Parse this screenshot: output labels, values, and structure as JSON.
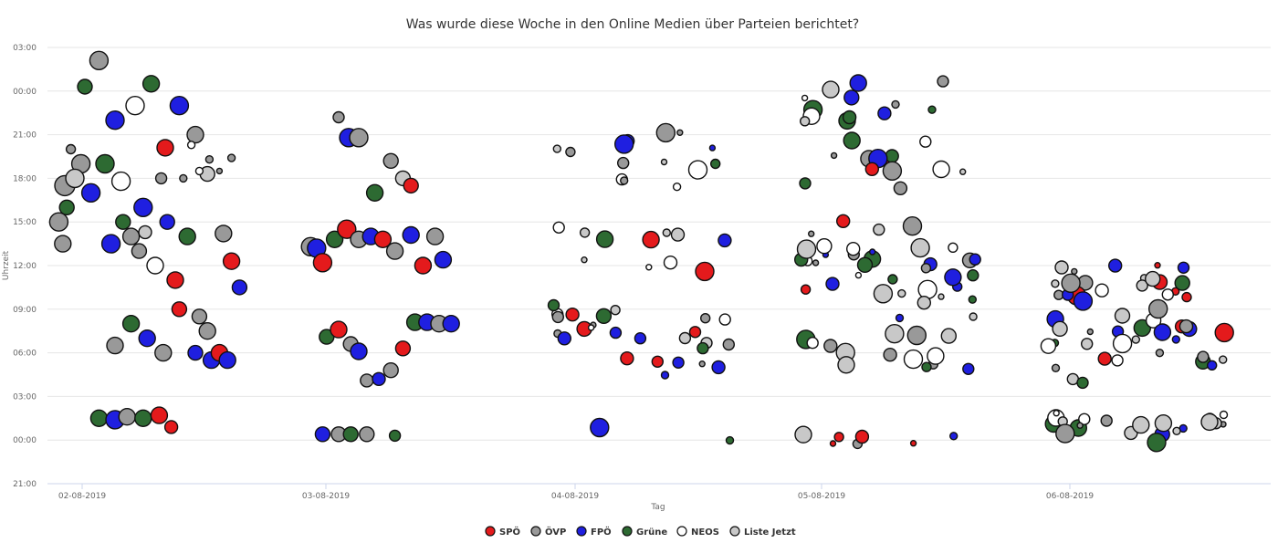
{
  "chart_data": {
    "type": "scatter",
    "title": "Was wurde diese Woche in den Online Medien über Parteien berichtet?",
    "xlabel": "Tag",
    "ylabel": "Uhrzeit",
    "x_categories": [
      "02-08-2019",
      "03-08-2019",
      "04-08-2019",
      "05-08-2019",
      "06-08-2019"
    ],
    "y_ticks": [
      "03:00",
      "00:00",
      "21:00",
      "18:00",
      "15:00",
      "12:00",
      "09:00",
      "06:00",
      "03:00",
      "00:00",
      "21:00"
    ],
    "ylim_hours": [
      -3,
      27
    ],
    "grid": true,
    "legend_position": "bottom-center",
    "series": [
      {
        "name": "SPÖ",
        "color": "#e41a1c"
      },
      {
        "name": "ÖVP",
        "color": "#999999"
      },
      {
        "name": "FPÖ",
        "color": "#1f1fe0"
      },
      {
        "name": "Grüne",
        "color": "#2d6a32"
      },
      {
        "name": "NEOS",
        "color": "#ffffff"
      },
      {
        "name": "Liste Jetzt",
        "color": "#c8c8c8"
      }
    ],
    "points": [
      [
        0,
        0.38,
        14,
        9,
        1
      ],
      [
        0,
        0.44,
        16,
        10,
        2
      ],
      [
        0,
        0.22,
        26.1,
        10,
        1
      ],
      [
        0,
        0.15,
        24.3,
        8,
        3
      ],
      [
        0,
        0.08,
        20,
        5,
        1
      ],
      [
        0,
        0.13,
        19,
        10,
        1
      ],
      [
        0,
        0.18,
        17,
        10,
        2
      ],
      [
        0,
        0.25,
        19,
        10,
        3
      ],
      [
        0,
        0.3,
        22,
        10,
        2
      ],
      [
        0,
        0.4,
        23,
        10,
        4
      ],
      [
        0,
        0.48,
        24.5,
        9,
        3
      ],
      [
        0,
        0.55,
        20.1,
        9,
        0
      ],
      [
        0,
        0.62,
        23,
        10,
        2
      ],
      [
        0,
        0.7,
        21,
        9,
        1
      ],
      [
        0,
        0.76,
        18.3,
        8,
        5
      ],
      [
        0,
        0.34,
        15,
        8,
        3
      ],
      [
        0,
        0.42,
        13,
        8,
        1
      ],
      [
        0,
        0.5,
        12,
        9,
        4
      ],
      [
        0,
        0.56,
        15,
        8,
        2
      ],
      [
        0,
        0.6,
        11,
        9,
        0
      ],
      [
        0,
        0.66,
        14,
        9,
        3
      ],
      [
        0,
        0.72,
        8.5,
        8,
        1
      ],
      [
        0,
        0.78,
        5.5,
        9,
        2
      ],
      [
        0,
        0.84,
        14.2,
        9,
        1
      ],
      [
        0,
        0.88,
        12.3,
        9,
        0
      ],
      [
        0,
        0.92,
        10.5,
        8,
        2
      ],
      [
        0,
        0.3,
        6.5,
        9,
        1
      ],
      [
        0,
        0.38,
        8,
        9,
        3
      ],
      [
        0,
        0.46,
        7,
        9,
        2
      ],
      [
        0,
        0.54,
        6,
        9,
        1
      ],
      [
        0,
        0.62,
        9,
        8,
        0
      ],
      [
        0,
        0.7,
        6,
        8,
        2
      ],
      [
        0,
        0.76,
        7.5,
        9,
        1
      ],
      [
        0,
        0.82,
        6,
        9,
        0
      ],
      [
        0,
        0.86,
        5.5,
        9,
        2
      ],
      [
        0,
        0.22,
        1.5,
        9,
        3
      ],
      [
        0,
        0.3,
        1.4,
        10,
        2
      ],
      [
        0,
        0.36,
        1.6,
        9,
        1
      ],
      [
        0,
        0.44,
        1.5,
        9,
        3
      ],
      [
        0,
        0.52,
        1.7,
        9,
        0
      ],
      [
        0,
        0.58,
        0.9,
        7,
        0
      ],
      [
        0,
        0.05,
        17.5,
        11,
        1
      ],
      [
        0,
        0.1,
        18,
        10,
        5
      ],
      [
        0,
        0.02,
        15,
        10,
        1
      ],
      [
        0,
        0.04,
        13.5,
        9,
        1
      ],
      [
        0,
        0.06,
        16,
        8,
        3
      ],
      [
        0,
        0.28,
        13.5,
        10,
        2
      ],
      [
        0,
        0.33,
        17.8,
        10,
        4
      ],
      [
        0,
        0.45,
        14.3,
        7,
        5
      ],
      [
        0,
        0.53,
        18,
        6,
        1
      ],
      [
        0,
        0.64,
        18,
        4,
        1
      ],
      [
        0,
        0.68,
        20.3,
        4,
        4
      ],
      [
        0,
        0.72,
        18.5,
        4,
        4
      ],
      [
        0,
        0.77,
        19.3,
        4,
        1
      ],
      [
        0,
        0.82,
        18.5,
        3,
        1
      ],
      [
        0,
        0.88,
        19.4,
        4,
        1
      ],
      [
        1,
        0.06,
        13.3,
        10,
        1
      ],
      [
        1,
        0.09,
        13.2,
        10,
        2
      ],
      [
        1,
        0.12,
        12.2,
        10,
        0
      ],
      [
        1,
        0.18,
        13.8,
        9,
        3
      ],
      [
        1,
        0.24,
        14.5,
        10,
        0
      ],
      [
        1,
        0.3,
        13.8,
        9,
        1
      ],
      [
        1,
        0.36,
        14,
        9,
        2
      ],
      [
        1,
        0.42,
        13.8,
        9,
        0
      ],
      [
        1,
        0.48,
        13,
        9,
        1
      ],
      [
        1,
        0.56,
        14.1,
        9,
        2
      ],
      [
        1,
        0.62,
        12,
        9,
        0
      ],
      [
        1,
        0.68,
        14,
        9,
        1
      ],
      [
        1,
        0.72,
        12.4,
        9,
        2
      ],
      [
        1,
        0.2,
        22.2,
        6,
        1
      ],
      [
        1,
        0.25,
        20.8,
        10,
        2
      ],
      [
        1,
        0.3,
        20.8,
        10,
        1
      ],
      [
        1,
        0.38,
        17,
        9,
        3
      ],
      [
        1,
        0.46,
        19.2,
        8,
        1
      ],
      [
        1,
        0.52,
        18,
        8,
        5
      ],
      [
        1,
        0.56,
        17.5,
        8,
        0
      ],
      [
        1,
        0.14,
        7.1,
        8,
        3
      ],
      [
        1,
        0.2,
        7.6,
        9,
        0
      ],
      [
        1,
        0.26,
        6.6,
        8,
        1
      ],
      [
        1,
        0.3,
        6.1,
        9,
        2
      ],
      [
        1,
        0.34,
        4.1,
        7,
        1
      ],
      [
        1,
        0.4,
        4.2,
        7,
        2
      ],
      [
        1,
        0.46,
        4.8,
        8,
        1
      ],
      [
        1,
        0.52,
        6.3,
        8,
        0
      ],
      [
        1,
        0.58,
        8.1,
        9,
        3
      ],
      [
        1,
        0.64,
        8.1,
        9,
        2
      ],
      [
        1,
        0.7,
        8,
        9,
        1
      ],
      [
        1,
        0.76,
        8,
        9,
        2
      ],
      [
        1,
        0.12,
        0.4,
        8,
        2
      ],
      [
        1,
        0.2,
        0.4,
        8,
        1
      ],
      [
        1,
        0.26,
        0.4,
        8,
        3
      ],
      [
        1,
        0.34,
        0.4,
        8,
        1
      ],
      [
        1,
        0.48,
        0.3,
        6,
        3
      ]
    ]
  },
  "legend": {
    "items": [
      {
        "label": "SPÖ",
        "color": "#e41a1c"
      },
      {
        "label": "ÖVP",
        "color": "#999999"
      },
      {
        "label": "FPÖ",
        "color": "#1f1fe0"
      },
      {
        "label": "Grüne",
        "color": "#2d6a32"
      },
      {
        "label": "NEOS",
        "color": "#ffffff"
      },
      {
        "label": "Liste Jetzt",
        "color": "#c8c8c8"
      }
    ]
  }
}
